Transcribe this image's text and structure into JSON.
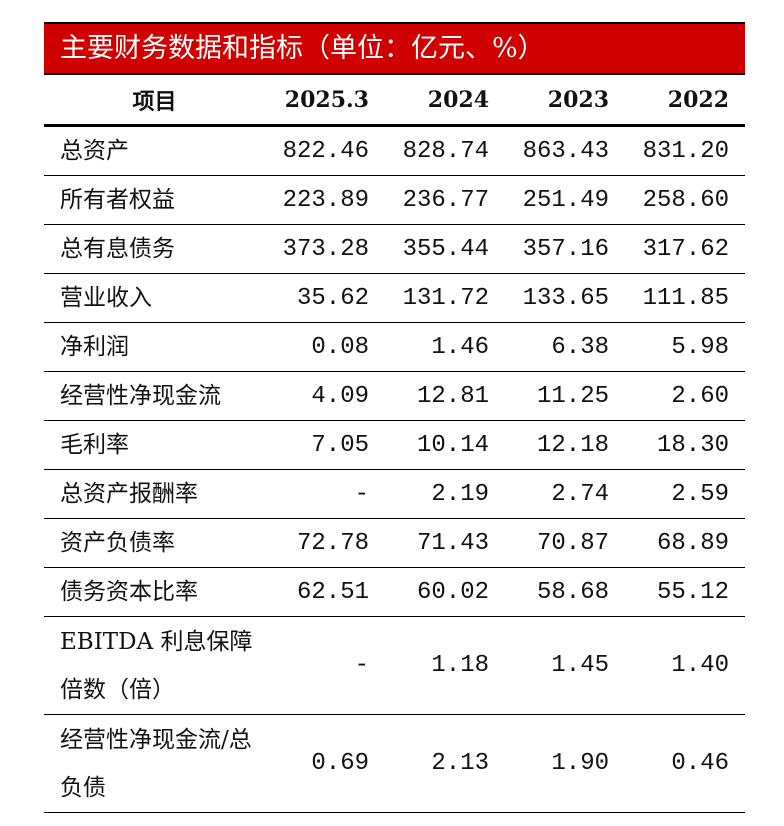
{
  "title": "主要财务数据和指标（单位：亿元、%）",
  "columns": [
    "项目",
    "2025.3",
    "2024",
    "2023",
    "2022"
  ],
  "rows": [
    {
      "label": "总资产",
      "values": [
        "822.46",
        "828.74",
        "863.43",
        "831.20"
      ]
    },
    {
      "label": "所有者权益",
      "values": [
        "223.89",
        "236.77",
        "251.49",
        "258.60"
      ]
    },
    {
      "label": "总有息债务",
      "values": [
        "373.28",
        "355.44",
        "357.16",
        "317.62"
      ]
    },
    {
      "label": "营业收入",
      "values": [
        "35.62",
        "131.72",
        "133.65",
        "111.85"
      ]
    },
    {
      "label": "净利润",
      "values": [
        "0.08",
        "1.46",
        "6.38",
        "5.98"
      ]
    },
    {
      "label": "经营性净现金流",
      "values": [
        "4.09",
        "12.81",
        "11.25",
        "2.60"
      ]
    },
    {
      "label": "毛利率",
      "values": [
        "7.05",
        "10.14",
        "12.18",
        "18.30"
      ]
    },
    {
      "label": "总资产报酬率",
      "values": [
        "-",
        "2.19",
        "2.74",
        "2.59"
      ]
    },
    {
      "label": "资产负债率",
      "values": [
        "72.78",
        "71.43",
        "70.87",
        "68.89"
      ]
    },
    {
      "label": "债务资本比率",
      "values": [
        "62.51",
        "60.02",
        "58.68",
        "55.12"
      ]
    },
    {
      "label": "EBITDA 利息保障倍数（倍）",
      "values": [
        "-",
        "1.18",
        "1.45",
        "1.40"
      ]
    },
    {
      "label": "经营性净现金流/总负债",
      "values": [
        "0.69",
        "2.13",
        "1.90",
        "0.46"
      ]
    }
  ]
}
